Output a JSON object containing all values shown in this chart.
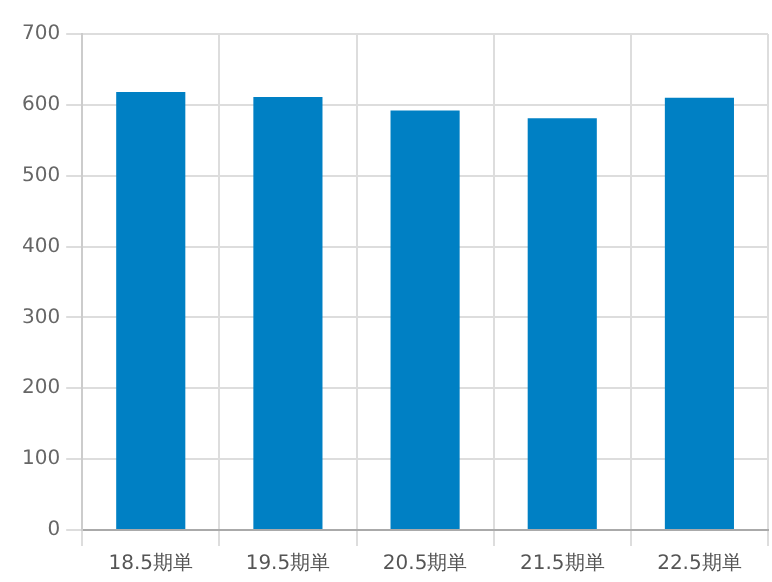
{
  "chart_data": {
    "type": "bar",
    "categories": [
      "18.5期単",
      "19.5期単",
      "20.5期単",
      "21.5期単",
      "22.5期単"
    ],
    "values": [
      618,
      611,
      592,
      581,
      610
    ],
    "color": "#0080c4",
    "ylim": [
      0,
      700
    ],
    "yticks": [
      0,
      100,
      200,
      300,
      400,
      500,
      600,
      700
    ],
    "grid": true
  }
}
